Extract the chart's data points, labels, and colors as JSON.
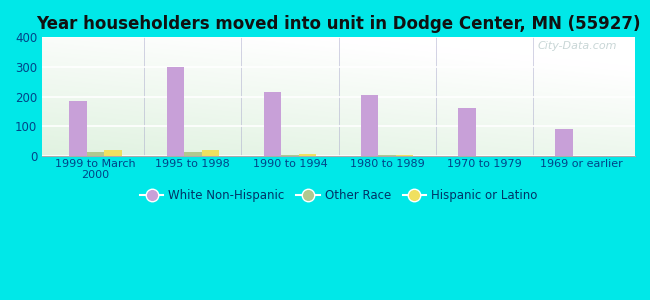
{
  "title": "Year householders moved into unit in Dodge Center, MN (55927)",
  "categories": [
    "1999 to March\n2000",
    "1995 to 1998",
    "1990 to 1994",
    "1980 to 1989",
    "1970 to 1979",
    "1969 or earlier"
  ],
  "white_non_hispanic": [
    185,
    300,
    215,
    207,
    163,
    90
  ],
  "other_race": [
    12,
    12,
    3,
    3,
    0,
    0
  ],
  "hispanic_or_latino": [
    20,
    20,
    7,
    5,
    0,
    0
  ],
  "white_color": "#c8a0d8",
  "other_color": "#b0c890",
  "hispanic_color": "#f0e060",
  "ylim": [
    0,
    400
  ],
  "yticks": [
    0,
    100,
    200,
    300,
    400
  ],
  "background_outer": "#00e8e8",
  "watermark": "City-Data.com",
  "bar_width": 0.18,
  "legend_labels": [
    "White Non-Hispanic",
    "Other Race",
    "Hispanic or Latino"
  ]
}
